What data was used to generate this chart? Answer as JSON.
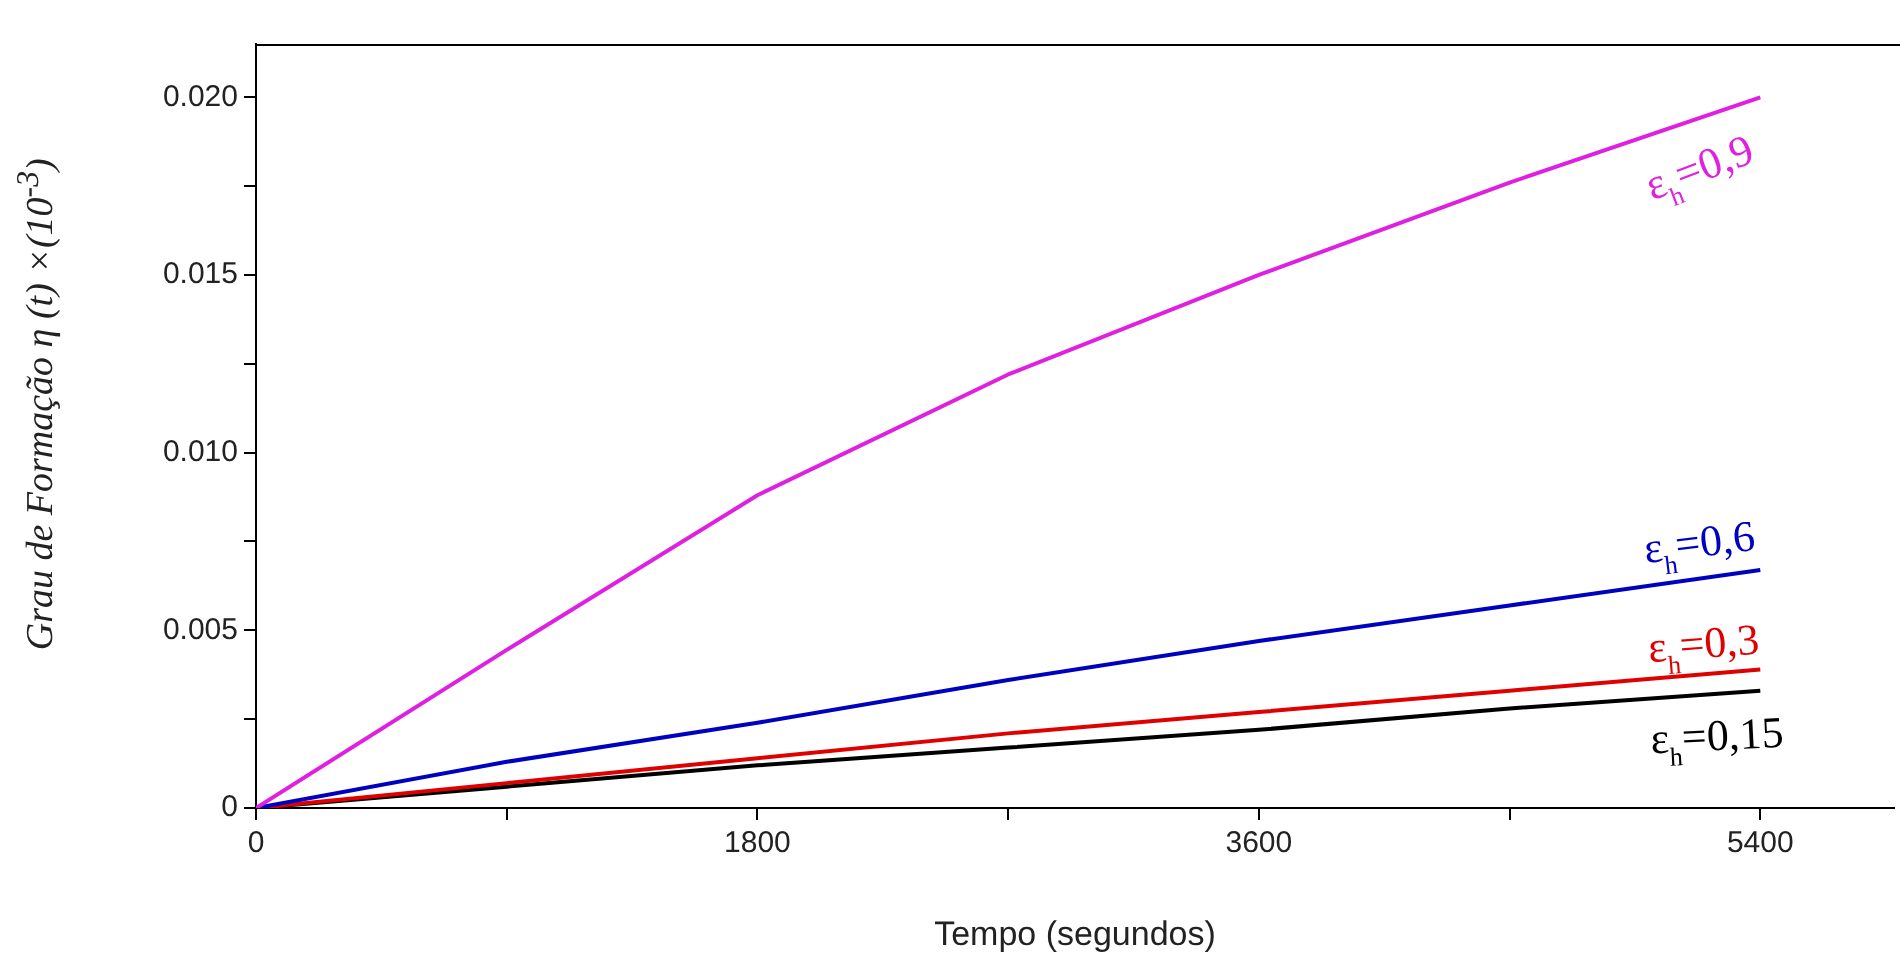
{
  "chart_data": {
    "type": "line",
    "xlabel": "Tempo (segundos)",
    "ylabel": "Grau de Formação η (t) ×(10$^{-3}$)",
    "x": [
      0,
      900,
      1800,
      2700,
      3600,
      4500,
      5400
    ],
    "series": [
      {
        "name": "ε$_{h}$=0,9",
        "color": "#e020e0",
        "values": [
          0,
          0.00445,
          0.0088,
          0.0122,
          0.015,
          0.0176,
          0.02
        ]
      },
      {
        "name": "ε$_{h}$=0,6",
        "color": "#0000c0",
        "values": [
          0,
          0.0013,
          0.0024,
          0.0036,
          0.0047,
          0.0057,
          0.0067
        ]
      },
      {
        "name": "ε$_{h}$=0,3",
        "color": "#e00000",
        "values": [
          0,
          0.0007,
          0.0014,
          0.0021,
          0.0027,
          0.0033,
          0.0039
        ]
      },
      {
        "name": "ε$_{h}$=0,15",
        "color": "#000000",
        "values": [
          0,
          0.0006,
          0.0012,
          0.0017,
          0.0022,
          0.0028,
          0.0033
        ]
      }
    ],
    "xlim": [
      0,
      5880
    ],
    "ylim": [
      0,
      0.0215
    ],
    "xticks": [
      0,
      {
        "value": 900,
        "label": null
      },
      1800,
      {
        "value": 2700,
        "label": null
      },
      3600,
      {
        "value": 4500,
        "label": null
      },
      5400
    ],
    "yticks": [
      0,
      {
        "value": 0.0025,
        "label": null
      },
      0.005,
      {
        "value": 0.0075,
        "label": null
      },
      {
        "value": 0.01,
        "label": "0.010"
      },
      {
        "value": 0.0125,
        "label": null
      },
      0.015,
      {
        "value": 0.0175,
        "label": null
      },
      {
        "value": 0.02,
        "label": "0.020"
      }
    ],
    "grid": false,
    "legend": false,
    "marker": "none",
    "line_style": "solid"
  }
}
